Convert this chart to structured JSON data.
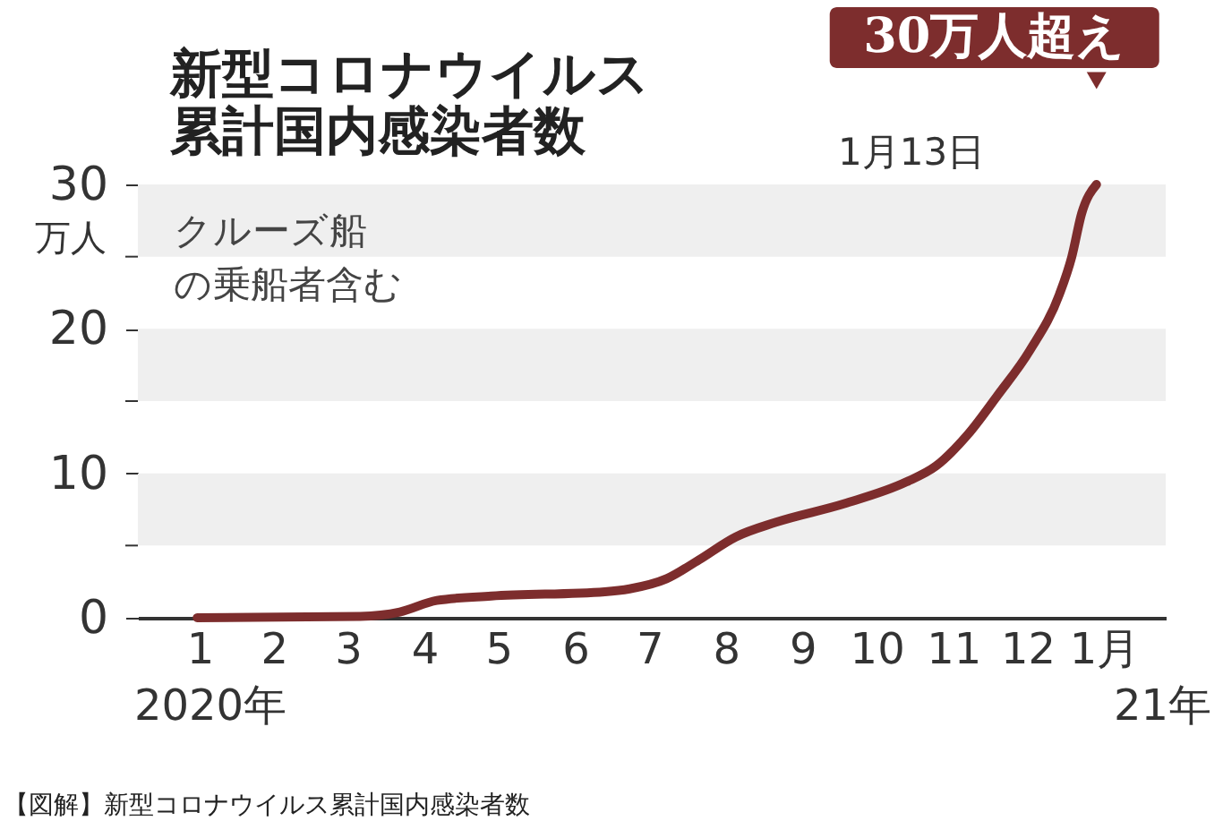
{
  "chart_data": {
    "type": "line",
    "title": "新型コロナウイルス累計国内感染者数",
    "ylabel": "万人",
    "x": [
      "2020-01-15",
      "2020-03-21",
      "2020-04-06",
      "2020-04-21",
      "2020-05-13",
      "2020-06-28",
      "2020-07-08",
      "2020-07-23",
      "2020-08-05",
      "2020-08-20",
      "2020-09-05",
      "2020-10-03",
      "2020-10-28",
      "2020-11-09",
      "2020-11-22",
      "2020-12-04",
      "2020-12-17",
      "2020-12-29",
      "2021-01-03",
      "2021-01-07",
      "2021-01-13"
    ],
    "series": [
      {
        "color": "#7d2d2d",
        "values": [
          0,
          0.1,
          0.4,
          1.2,
          1.5,
          1.8,
          2.0,
          2.7,
          4.0,
          5.6,
          6.6,
          7.9,
          9.4,
          10.5,
          12.7,
          15.4,
          18.5,
          22.4,
          25,
          28,
          30
        ]
      }
    ],
    "xlim": [
      "2019-12-22",
      "2021-02-10"
    ],
    "xticks": [
      {
        "value": "2020-01-16",
        "label": "1"
      },
      {
        "value": "2020-02-15",
        "label": "2"
      },
      {
        "value": "2020-03-16",
        "label": "3"
      },
      {
        "value": "2020-04-16",
        "label": "4"
      },
      {
        "value": "2020-05-16",
        "label": "5"
      },
      {
        "value": "2020-06-16",
        "label": "6"
      },
      {
        "value": "2020-07-16",
        "label": "7"
      },
      {
        "value": "2020-08-16",
        "label": "8"
      },
      {
        "value": "2020-09-16",
        "label": "9"
      },
      {
        "value": "2020-10-16",
        "label": "10"
      },
      {
        "value": "2020-11-16",
        "label": "11"
      },
      {
        "value": "2020-12-16",
        "label": "12"
      },
      {
        "value": "2021-01-16",
        "label": "1月"
      }
    ],
    "ylim": [
      0,
      30
    ],
    "yticks": [
      0,
      10,
      20,
      30
    ],
    "bands": [
      {
        "axis": "y",
        "from": 5,
        "to": 10,
        "color": "#efefef"
      },
      {
        "axis": "y",
        "from": 15,
        "to": 20,
        "color": "#efefef"
      },
      {
        "axis": "y",
        "from": 25,
        "to": 30,
        "color": "#efefef"
      }
    ],
    "annotations": [
      {
        "text": "30万人超え",
        "x": "2021-01-13",
        "y": 30
      },
      "1月13日",
      "クルーズ船",
      "の乗船者含む",
      "2020年",
      "21年",
      "【図解】新型コロナウイルス累計国内感染者数"
    ],
    "grid": false,
    "marker": "none",
    "line_style": "solid"
  }
}
